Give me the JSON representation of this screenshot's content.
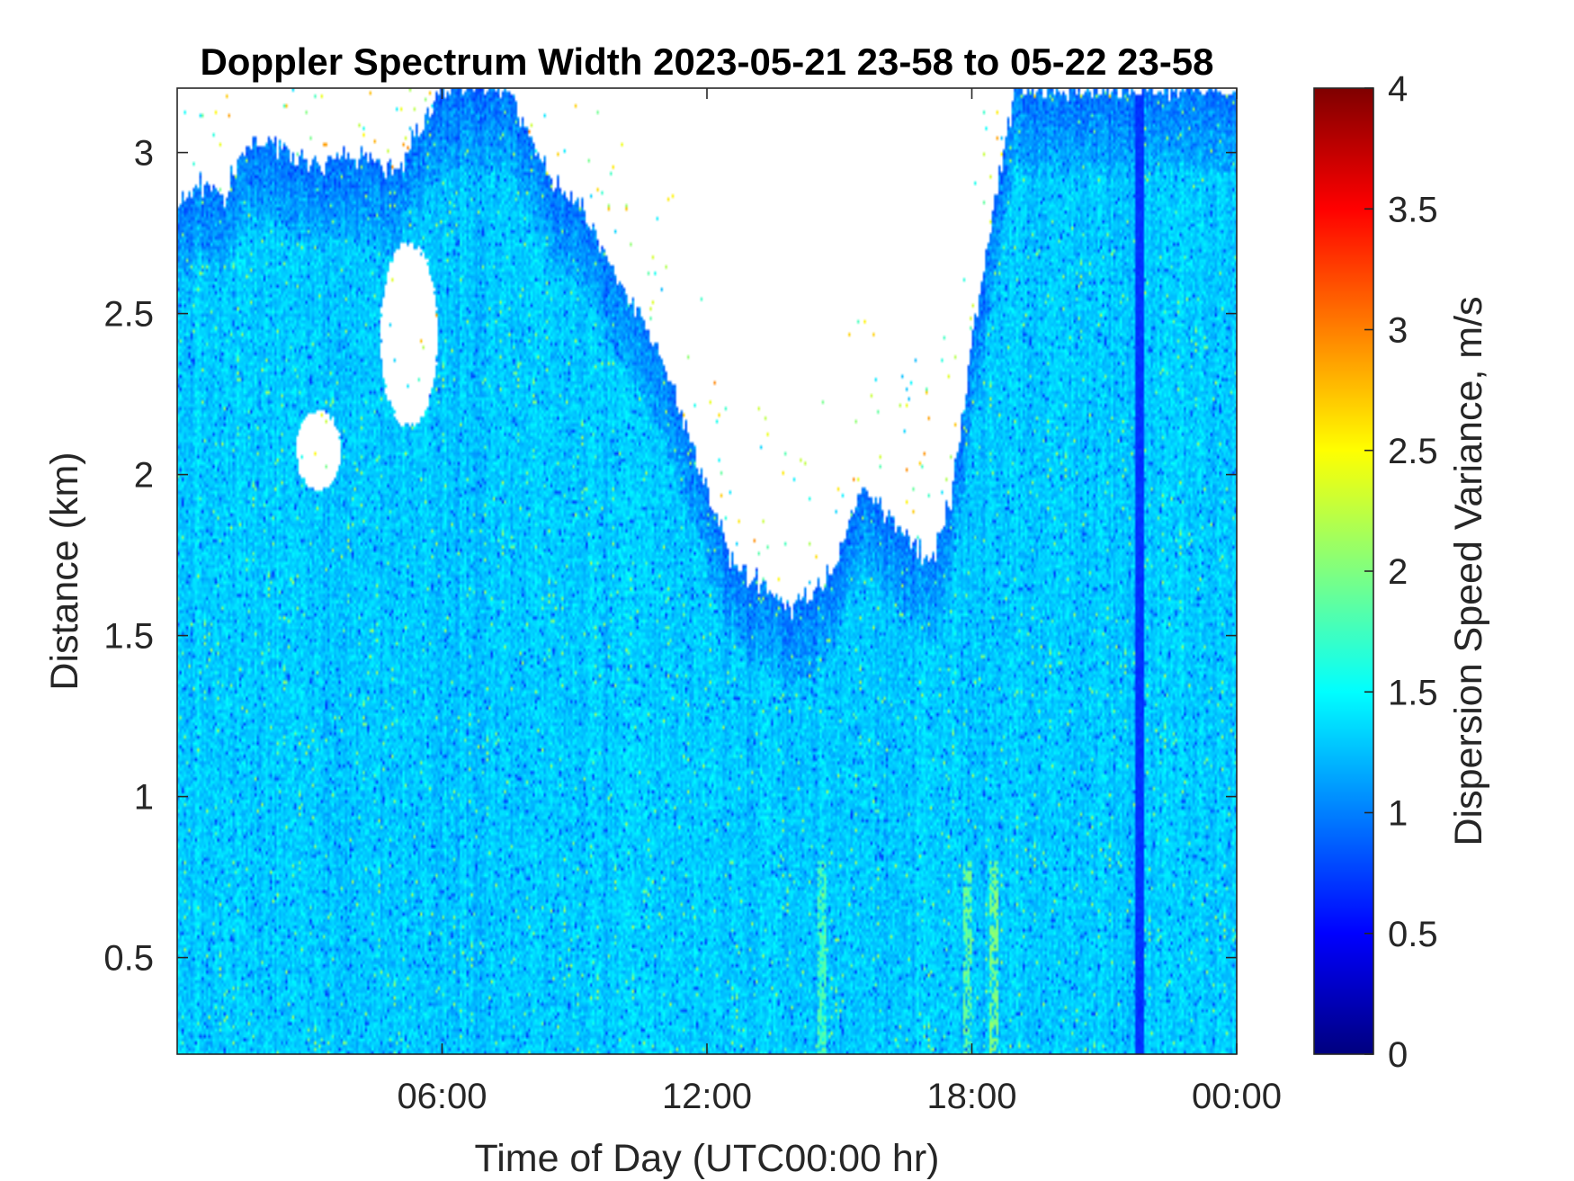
{
  "chart_data": {
    "type": "heatmap",
    "title": "Doppler Spectrum Width 2023-05-21 23-58 to 05-22 23-58",
    "xlabel": "Time of Day (UTC00:00 hr)",
    "ylabel": "Distance (km)",
    "x_range_hours": [
      0,
      24
    ],
    "x_ticks": [
      {
        "value": 6,
        "label": "06:00"
      },
      {
        "value": 12,
        "label": "12:00"
      },
      {
        "value": 18,
        "label": "18:00"
      },
      {
        "value": 24,
        "label": "00:00"
      }
    ],
    "ylim": [
      0.2,
      3.2
    ],
    "y_ticks": [
      {
        "value": 0.5,
        "label": "0.5"
      },
      {
        "value": 1,
        "label": "1"
      },
      {
        "value": 1.5,
        "label": "1.5"
      },
      {
        "value": 2,
        "label": "2"
      },
      {
        "value": 2.5,
        "label": "2.5"
      },
      {
        "value": 3,
        "label": "3"
      }
    ],
    "colorbar": {
      "label": "Dispersion Speed Variance, m/s",
      "colormap": "jet",
      "range": [
        0,
        4
      ],
      "ticks": [
        {
          "value": 0,
          "label": "0"
        },
        {
          "value": 0.5,
          "label": "0.5"
        },
        {
          "value": 1,
          "label": "1"
        },
        {
          "value": 1.5,
          "label": "1.5"
        },
        {
          "value": 2,
          "label": "2"
        },
        {
          "value": 2.5,
          "label": "2.5"
        },
        {
          "value": 3,
          "label": "3"
        },
        {
          "value": 3.5,
          "label": "3.5"
        },
        {
          "value": 4,
          "label": "4"
        }
      ]
    },
    "typical_value": 1.3,
    "data_top_km": [
      [
        0.0,
        2.85
      ],
      [
        0.5,
        2.9
      ],
      [
        1.0,
        2.85
      ],
      [
        1.5,
        3.0
      ],
      [
        2.0,
        3.05
      ],
      [
        3.0,
        2.95
      ],
      [
        4.0,
        3.0
      ],
      [
        5.0,
        2.95
      ],
      [
        6.0,
        3.2
      ],
      [
        7.5,
        3.2
      ],
      [
        8.5,
        2.9
      ],
      [
        9.0,
        2.85
      ],
      [
        9.5,
        2.75
      ],
      [
        10.0,
        2.6
      ],
      [
        10.5,
        2.5
      ],
      [
        11.0,
        2.35
      ],
      [
        11.5,
        2.15
      ],
      [
        12.0,
        1.95
      ],
      [
        12.5,
        1.75
      ],
      [
        13.0,
        1.68
      ],
      [
        13.5,
        1.62
      ],
      [
        14.0,
        1.6
      ],
      [
        14.5,
        1.65
      ],
      [
        15.0,
        1.75
      ],
      [
        15.5,
        1.95
      ],
      [
        16.0,
        1.9
      ],
      [
        16.5,
        1.8
      ],
      [
        17.0,
        1.72
      ],
      [
        17.5,
        1.9
      ],
      [
        18.0,
        2.4
      ],
      [
        18.5,
        2.85
      ],
      [
        19.0,
        3.2
      ],
      [
        24.0,
        3.2
      ]
    ],
    "gaps": [
      {
        "t0": 4.6,
        "t1": 5.9,
        "d0": 2.15,
        "d1": 2.72
      },
      {
        "t0": 2.7,
        "t1": 3.7,
        "d0": 1.95,
        "d1": 2.2
      }
    ],
    "noted_features": [
      {
        "t": 21.8,
        "value": 0.7
      },
      {
        "t": 17.9,
        "value": 1.9,
        "d_max_km": 0.8
      },
      {
        "t": 18.5,
        "value": 2.0,
        "d_max_km": 0.8
      },
      {
        "t": 14.6,
        "value": 1.8,
        "d_max_km": 0.8
      }
    ]
  }
}
